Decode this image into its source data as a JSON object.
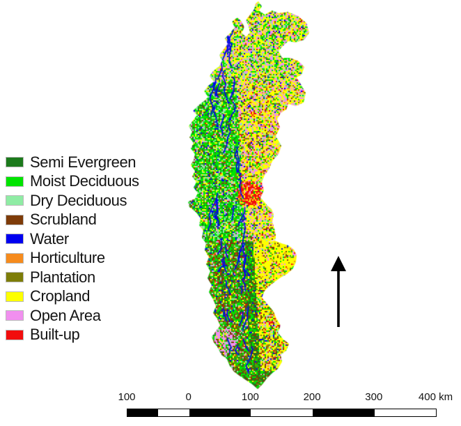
{
  "figure": {
    "kind": "land-use-land-cover-classification-map",
    "background_color": "#ffffff"
  },
  "legend": {
    "items": [
      {
        "label": "Semi Evergreen",
        "color": "#1c7a1c"
      },
      {
        "label": "Moist Deciduous",
        "color": "#00e400"
      },
      {
        "label": "Dry Deciduous",
        "color": "#8feca4"
      },
      {
        "label": "Scrubland",
        "color": "#7e3b08"
      },
      {
        "label": "Water",
        "color": "#0000f0"
      },
      {
        "label": "Horticulture",
        "color": "#f68b1d"
      },
      {
        "label": "Plantation",
        "color": "#7d7d08"
      },
      {
        "label": "Cropland",
        "color": "#fdff00"
      },
      {
        "label": "Open Area",
        "color": "#f18fef"
      },
      {
        "label": "Built-up",
        "color": "#f20d0d"
      }
    ]
  },
  "north_arrow": {
    "description": "north-pointing arrow",
    "color": "#000000"
  },
  "scale_bar": {
    "tick_labels": [
      "100",
      "0",
      "100",
      "200",
      "300",
      "400 km"
    ],
    "unit": "km",
    "segments_km": [
      50,
      50,
      100,
      100,
      100,
      100
    ],
    "segment_colors": [
      "#000000",
      "#ffffff"
    ],
    "border_color": "#000000"
  }
}
